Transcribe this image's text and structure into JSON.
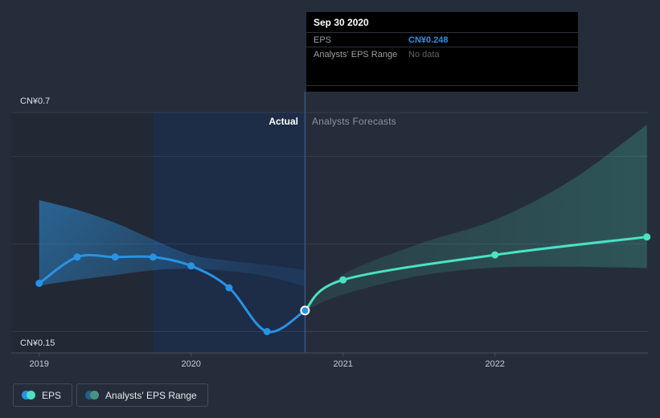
{
  "tooltip": {
    "title": "Sep 30 2020",
    "rows": [
      {
        "label": "EPS",
        "value": "CN¥0.248"
      },
      {
        "label": "Analysts' EPS Range",
        "value": "No data"
      }
    ]
  },
  "annotations": {
    "actual_label": "Actual",
    "forecast_label": "Analysts Forecasts"
  },
  "legend": [
    {
      "label": "EPS",
      "colors": [
        "#2793e6",
        "#49e2c4"
      ]
    },
    {
      "label": "Analysts' EPS Range",
      "colors": [
        "#235e8c",
        "#479382"
      ]
    }
  ],
  "colors": {
    "background": "#262d3a",
    "highlight_band": "#1d2c47",
    "past_shade": "rgba(0,0,0,0.10)",
    "eps_line": "#2793e6",
    "forecast_line": "#49e2c4",
    "divider": "#35587e",
    "axis_line": "#3c4451",
    "tick": "#4a5260",
    "gridline": "rgba(255,255,255,0.08)",
    "tick_label": "#c9ced4",
    "marker_ring": "#ffffff"
  },
  "chart_data": {
    "type": "line",
    "title": "EPS actual vs analysts forecasts",
    "currency": "CN¥",
    "ylim": [
      0.15,
      0.7
    ],
    "xlim": [
      2018.82,
      2023.0
    ],
    "grid": "horizontal-only",
    "legend_position": "bottom-left",
    "y_gridlines": [
      0.7,
      0.6,
      0.4,
      0.2,
      0.15
    ],
    "y_axis_labels": [
      {
        "value": 0.7,
        "text": "CN¥0.7"
      },
      {
        "value": 0.15,
        "text": "CN¥0.15"
      }
    ],
    "x_ticks": [
      2019,
      2020,
      2021,
      2022
    ],
    "cutoff_x": 2020.75,
    "highlight_span": [
      2019.75,
      2020.75
    ],
    "selected_point": {
      "x": 2020.75,
      "value": 0.248,
      "date": "Sep 30 2020"
    },
    "series": [
      {
        "name": "EPS",
        "kind": "line",
        "segment": "actual",
        "x": [
          2019.0,
          2019.25,
          2019.5,
          2019.75,
          2020.0,
          2020.25,
          2020.5,
          2020.75
        ],
        "values": [
          0.31,
          0.37,
          0.37,
          0.37,
          0.35,
          0.3,
          0.2,
          0.248
        ],
        "selected_index": 7
      },
      {
        "name": "Analysts' EPS Range (past)",
        "kind": "band",
        "segment": "actual",
        "x": [
          2019.0,
          2019.25,
          2019.5,
          2019.75,
          2020.0,
          2020.25,
          2020.5,
          2020.75
        ],
        "top": [
          0.5,
          0.478,
          0.448,
          0.41,
          0.375,
          0.362,
          0.352,
          0.341
        ],
        "bottom": [
          0.305,
          0.318,
          0.329,
          0.34,
          0.343,
          0.338,
          0.326,
          0.303
        ]
      },
      {
        "name": "EPS (analysts forecast)",
        "kind": "line",
        "segment": "forecast",
        "x": [
          2020.75,
          2021.0,
          2022.0,
          2023.0
        ],
        "values": [
          0.248,
          0.318,
          0.375,
          0.416
        ],
        "marker_indices": [
          1,
          2,
          3
        ]
      },
      {
        "name": "Analysts' EPS Range (forecast)",
        "kind": "band",
        "segment": "forecast",
        "x": [
          2020.75,
          2021.0,
          2021.5,
          2022.0,
          2022.5,
          2023.0
        ],
        "top": [
          0.248,
          0.33,
          0.4,
          0.455,
          0.545,
          0.672
        ],
        "bottom": [
          0.248,
          0.285,
          0.327,
          0.346,
          0.348,
          0.345
        ]
      }
    ]
  }
}
